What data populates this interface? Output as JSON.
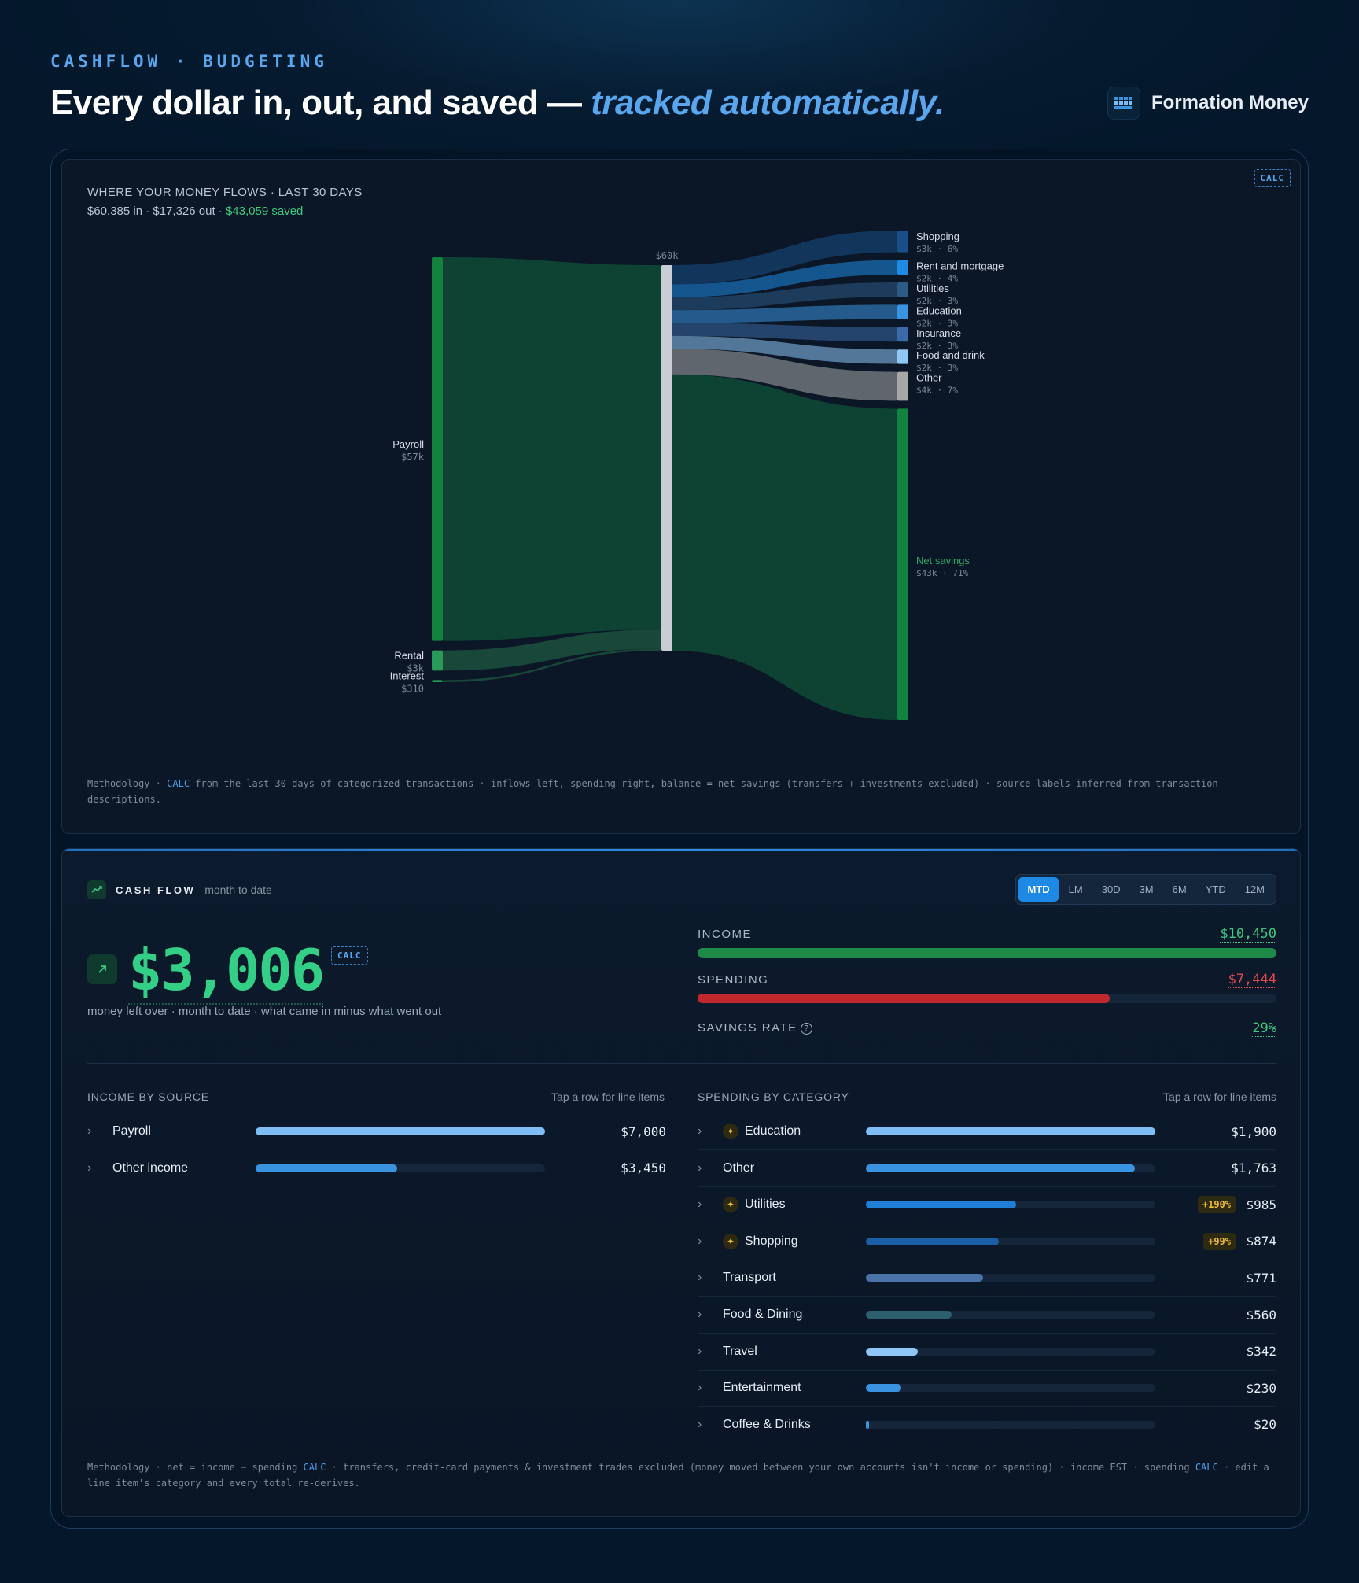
{
  "header": {
    "eyebrow": "CASHFLOW · BUDGETING",
    "headline_plain": "Every dollar in, out, and saved — ",
    "headline_accent": "tracked automatically.",
    "brand_name": "Formation Money"
  },
  "flows_card": {
    "badge": "CALC",
    "title": "WHERE YOUR MONEY FLOWS · LAST 30 DAYS",
    "summary_in_out": "$60,385 in · $17,326 out · ",
    "summary_saved": "$43,059 saved",
    "center_label": "$60k",
    "sources": [
      {
        "name": "Payroll",
        "value": "$57k",
        "amount": 57000
      },
      {
        "name": "Rental",
        "value": "$3k",
        "amount": 3000
      },
      {
        "name": "Interest",
        "value": "$310",
        "amount": 310
      }
    ],
    "targets": [
      {
        "name": "Shopping",
        "value": "$3k",
        "pct": "6%",
        "amount": 3000,
        "color": "#1a4e86"
      },
      {
        "name": "Rent and mortgage",
        "value": "$2k",
        "pct": "4%",
        "amount": 2000,
        "color": "#1f8ae6"
      },
      {
        "name": "Utilities",
        "value": "$2k",
        "pct": "3%",
        "amount": 2000,
        "color": "#2e5a86"
      },
      {
        "name": "Education",
        "value": "$2k",
        "pct": "3%",
        "amount": 2000,
        "color": "#3a93e0"
      },
      {
        "name": "Insurance",
        "value": "$2k",
        "pct": "3%",
        "amount": 2000,
        "color": "#3a6aa8"
      },
      {
        "name": "Food and drink",
        "value": "$2k",
        "pct": "3%",
        "amount": 2000,
        "color": "#8fc6f5"
      },
      {
        "name": "Other",
        "value": "$4k",
        "pct": "7%",
        "amount": 4000,
        "color": "#a7a7a7"
      },
      {
        "name": "Net savings",
        "value": "$43k",
        "pct": "71%",
        "amount": 43000,
        "color": "#12833f"
      }
    ],
    "methodology_prefix": "Methodology · ",
    "methodology_calc": "CALC",
    "methodology_rest": " from the last 30 days of categorized transactions · inflows left, spending right, balance = net savings (transfers + investments excluded) · source labels inferred from transaction descriptions."
  },
  "cashflow_card": {
    "title": "CASH FLOW",
    "subtitle": "month to date",
    "ranges": [
      "MTD",
      "LM",
      "30D",
      "3M",
      "6M",
      "YTD",
      "12M"
    ],
    "active_range": "MTD",
    "net_value": "$3,006",
    "net_badge": "CALC",
    "net_caption": "money left over · month to date · what came in minus what went out",
    "income_label": "INCOME",
    "income_value": "$10,450",
    "income_fraction": 1.0,
    "spending_label": "SPENDING",
    "spending_value": "$7,444",
    "spending_fraction": 0.712,
    "savings_label": "SAVINGS RATE",
    "savings_value": "29%",
    "colors": {
      "income": "#1e8a47",
      "spending": "#c0282e",
      "income_text": "#3ec97e",
      "spending_text": "#e5484d",
      "savings_text": "#3ec97e"
    },
    "income_by_source": {
      "heading": "INCOME BY SOURCE",
      "hint": "Tap a row for line items",
      "rows": [
        {
          "name": "Payroll",
          "amount": "$7,000",
          "fraction": 1.0,
          "color": "#7fbef5"
        },
        {
          "name": "Other income",
          "amount": "$3,450",
          "fraction": 0.49,
          "color": "#3a93e0"
        }
      ]
    },
    "spending_by_category": {
      "heading": "SPENDING BY CATEGORY",
      "hint": "Tap a row for line items",
      "rows": [
        {
          "name": "Education",
          "amount": "$1,900",
          "fraction": 1.0,
          "color": "#7fbef5",
          "flag": true,
          "badge": ""
        },
        {
          "name": "Other",
          "amount": "$1,763",
          "fraction": 0.928,
          "color": "#3a93e0",
          "flag": false,
          "badge": ""
        },
        {
          "name": "Utilities",
          "amount": "$985",
          "fraction": 0.518,
          "color": "#1f7fd6",
          "flag": true,
          "badge": "+190%"
        },
        {
          "name": "Shopping",
          "amount": "$874",
          "fraction": 0.46,
          "color": "#1a5fa6",
          "flag": true,
          "badge": "+99%"
        },
        {
          "name": "Transport",
          "amount": "$771",
          "fraction": 0.406,
          "color": "#4a73a8",
          "flag": false,
          "badge": ""
        },
        {
          "name": "Food & Dining",
          "amount": "$560",
          "fraction": 0.295,
          "color": "#2d5f6e",
          "flag": false,
          "badge": ""
        },
        {
          "name": "Travel",
          "amount": "$342",
          "fraction": 0.18,
          "color": "#8fc6f5",
          "flag": false,
          "badge": ""
        },
        {
          "name": "Entertainment",
          "amount": "$230",
          "fraction": 0.121,
          "color": "#3a93e0",
          "flag": false,
          "badge": ""
        },
        {
          "name": "Coffee & Drinks",
          "amount": "$20",
          "fraction": 0.011,
          "color": "#3a93e0",
          "flag": false,
          "badge": ""
        }
      ]
    },
    "methodology_a": "Methodology · net = income − spending ",
    "methodology_calc1": "CALC",
    "methodology_b": " · transfers, credit-card payments & investment trades excluded (money moved between your own accounts isn't income or spending) · income EST · spending ",
    "methodology_calc2": "CALC",
    "methodology_c": " · edit a line item's category and every total re-derives."
  }
}
